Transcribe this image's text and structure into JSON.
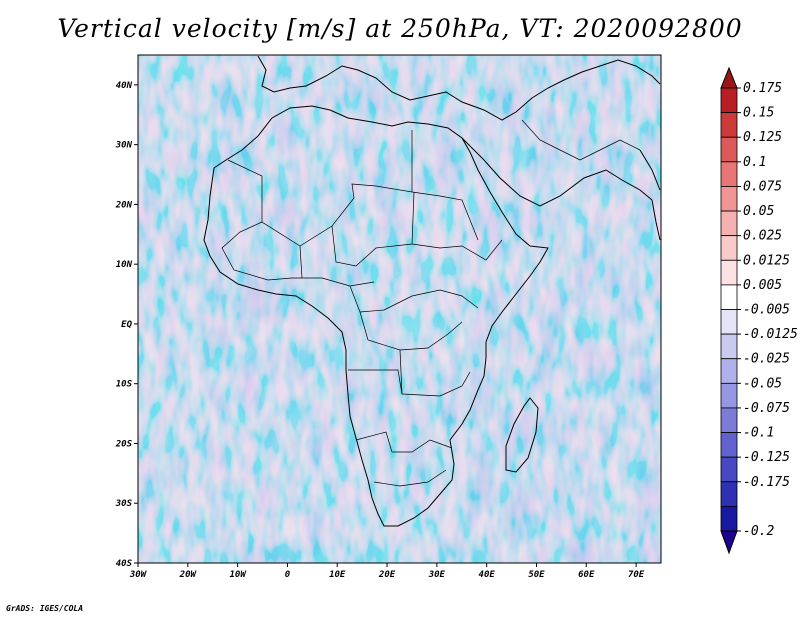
{
  "title": "Vertical velocity [m/s] at 250hPa, VT: 2020092800",
  "credit": "GrADS: IGES/COLA",
  "map": {
    "lon_labels": [
      "30W",
      "20W",
      "10W",
      "0",
      "10E",
      "20E",
      "30E",
      "40E",
      "50E",
      "60E",
      "70E"
    ],
    "lat_labels": [
      "40N",
      "30N",
      "20N",
      "10N",
      "EQ",
      "10S",
      "20S",
      "30S",
      "40S"
    ],
    "lon_range": [
      -30,
      75
    ],
    "lat_range": [
      -40,
      45
    ]
  },
  "colorbar": {
    "labels": [
      "0.175",
      "0.15",
      "0.125",
      "0.1",
      "0.075",
      "0.05",
      "0.025",
      "0.0125",
      "0.005",
      "-0.005",
      "-0.0125",
      "-0.025",
      "-0.05",
      "-0.075",
      "-0.1",
      "-0.125",
      "-0.175",
      "-0.2"
    ],
    "colors": [
      "#b81e24",
      "#cc3a3a",
      "#dc5a5a",
      "#e87676",
      "#f09494",
      "#f5b0b0",
      "#f9caca",
      "#fce2e2",
      "#ffffff",
      "#e4e4f6",
      "#cacaf0",
      "#b0b0ea",
      "#9696e2",
      "#7c7cd8",
      "#6262ce",
      "#4848c2",
      "#3030b4",
      "#1818a0"
    ],
    "top_arrow_color": "#9a1418",
    "bottom_arrow_color": "#200090"
  }
}
